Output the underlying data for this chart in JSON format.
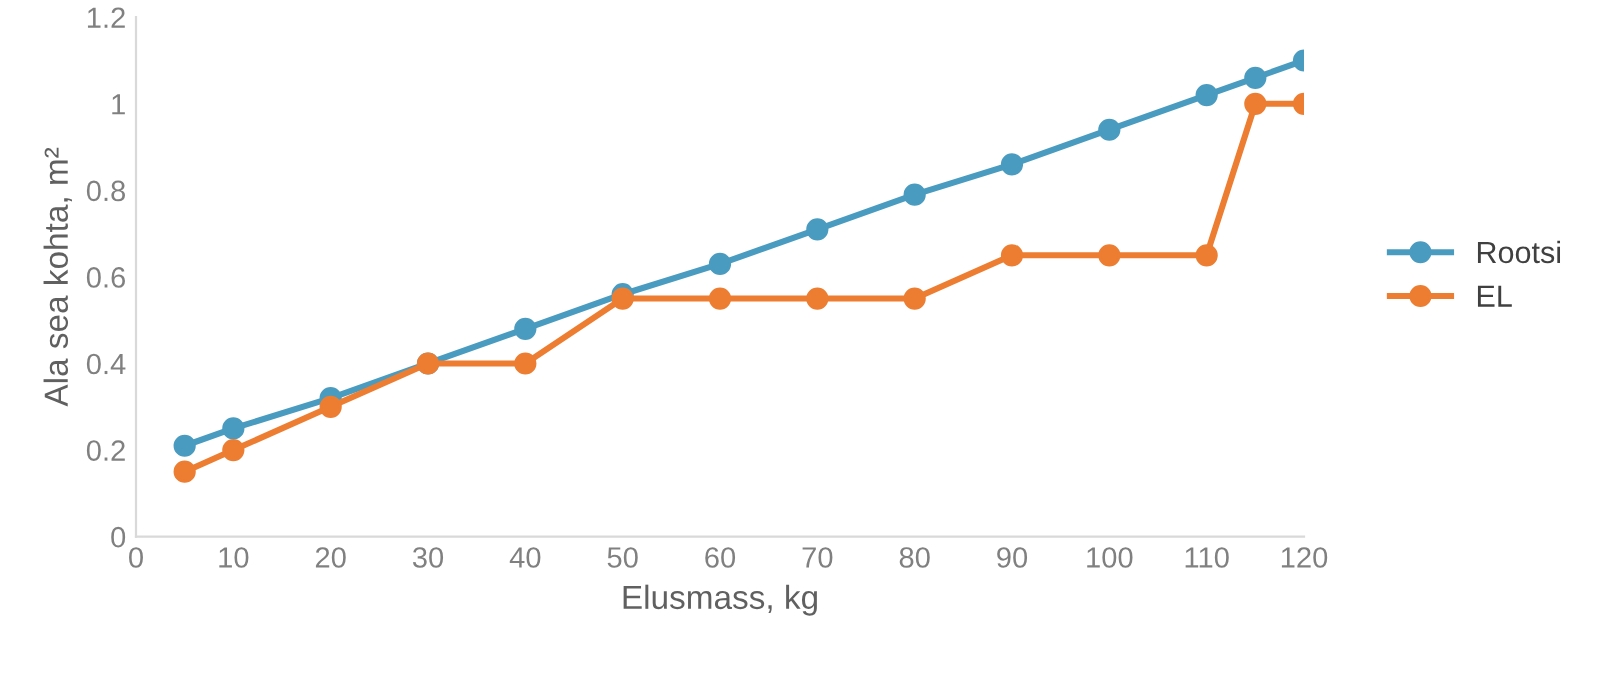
{
  "chart_data": {
    "type": "line",
    "xlabel": "Elusmass, kg",
    "ylabel": "Ala sea kohta, m²",
    "x": [
      5,
      10,
      20,
      30,
      40,
      50,
      60,
      70,
      80,
      90,
      100,
      110,
      115,
      120
    ],
    "series": [
      {
        "name": "Rootsi",
        "color": "#4a9bc0",
        "values": [
          0.21,
          0.25,
          0.32,
          0.4,
          0.48,
          0.56,
          0.63,
          0.71,
          0.79,
          0.86,
          0.94,
          1.02,
          1.06,
          1.1
        ]
      },
      {
        "name": "EL",
        "color": "#ed7d31",
        "values": [
          0.15,
          0.2,
          0.3,
          0.4,
          0.4,
          0.55,
          0.55,
          0.55,
          0.55,
          0.65,
          0.65,
          0.65,
          1.0,
          1.0
        ]
      }
    ],
    "xlim": [
      0,
      120
    ],
    "xticks": [
      0,
      10,
      20,
      30,
      40,
      50,
      60,
      70,
      80,
      90,
      100,
      110,
      120
    ],
    "ylim": [
      0,
      1.2
    ],
    "yticks": [
      0,
      0.2,
      0.4,
      0.6,
      0.8,
      1,
      1.2
    ],
    "marker": "circle",
    "line_style": "solid",
    "grid": false,
    "legend": "right"
  }
}
